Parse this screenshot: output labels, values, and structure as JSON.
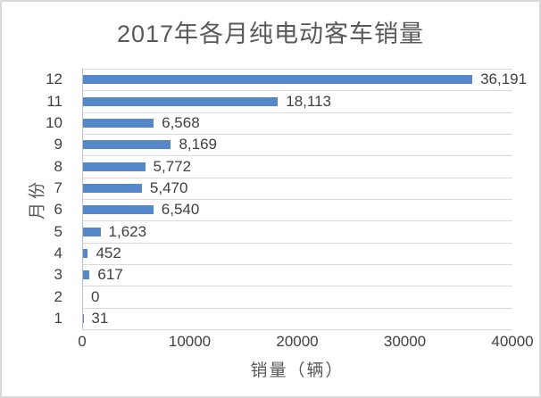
{
  "chart": {
    "title": "2017年各月纯电动客车销量",
    "x_axis_title": "销量（辆）",
    "y_axis_title": "月份",
    "colors": {
      "bar": "#5588CB",
      "gridline": "#D9D9D9",
      "axis_line": "#BFBFBF",
      "tick_text": "#404040",
      "title_text": "#595959",
      "frame_border": "#D9D9D9",
      "background": "#FFFFFF"
    }
  },
  "chart_data": {
    "type": "bar",
    "orientation": "horizontal",
    "title": "2017年各月纯电动客车销量",
    "xlabel": "销量（辆）",
    "ylabel": "月份",
    "categories": [
      "12",
      "11",
      "10",
      "9",
      "8",
      "7",
      "6",
      "5",
      "4",
      "3",
      "2",
      "1"
    ],
    "values": [
      36191,
      18113,
      6568,
      8169,
      5772,
      5470,
      6540,
      1623,
      452,
      617,
      0,
      31
    ],
    "data_labels": [
      "36,191",
      "18,113",
      "6,568",
      "8,169",
      "5,772",
      "5,470",
      "6,540",
      "1,623",
      "452",
      "617",
      "0",
      "31"
    ],
    "xlim": [
      0,
      40000
    ],
    "x_ticks": [
      0,
      10000,
      20000,
      30000,
      40000
    ],
    "x_tick_labels": [
      "0",
      "10000",
      "20000",
      "30000",
      "40000"
    ],
    "grid": "horizontal category separators only",
    "legend": "none",
    "data_labels_visible": true
  }
}
